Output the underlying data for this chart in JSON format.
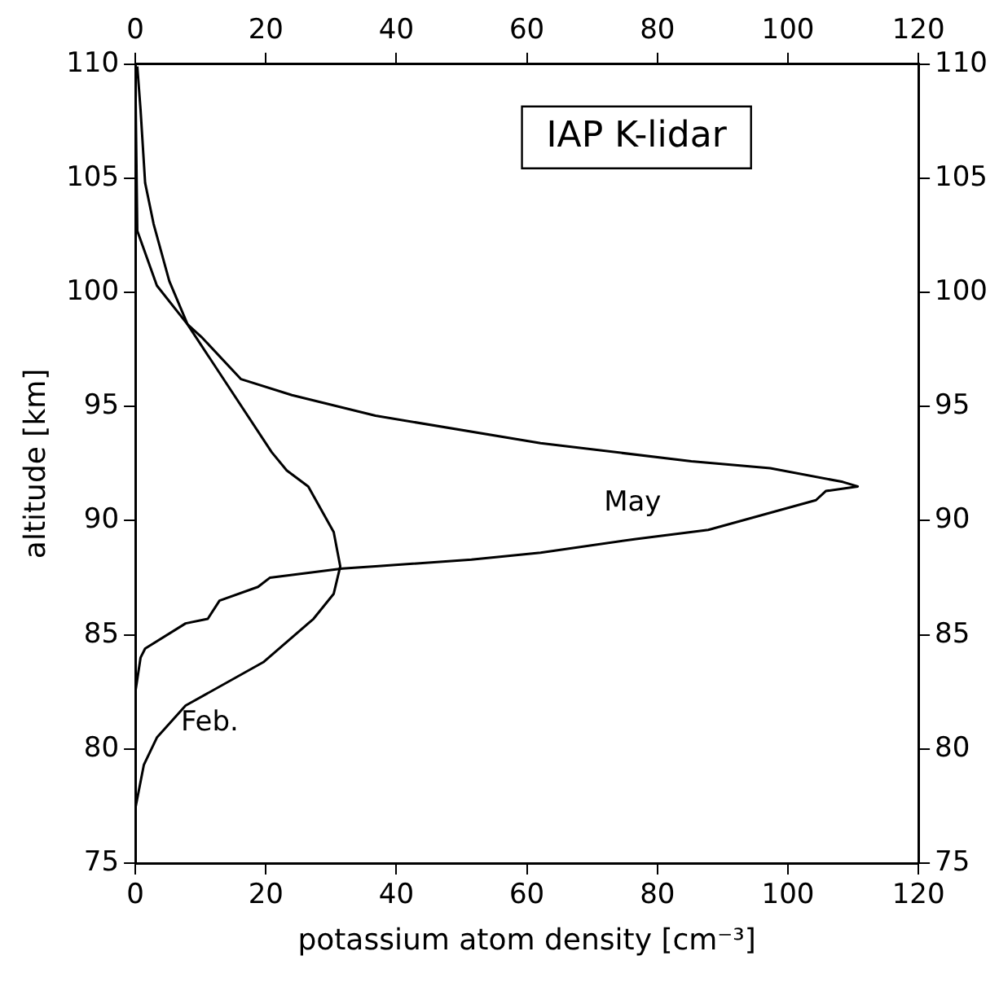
{
  "chart_data": {
    "type": "line",
    "title": "IAP K-lidar",
    "xlabel": "potassium atom density [cm⁻³]",
    "ylabel": "altitude [km]",
    "xlim": [
      0,
      120
    ],
    "xticks": [
      0,
      20,
      40,
      60,
      80,
      100,
      120
    ],
    "x2lim": [
      0,
      120
    ],
    "x2ticks": [
      0,
      20,
      40,
      60,
      80,
      100,
      120
    ],
    "ylim": [
      75,
      110
    ],
    "yticks": [
      75,
      80,
      85,
      90,
      95,
      100,
      105,
      110
    ],
    "y2lim": [
      75,
      110
    ],
    "y2ticks": [
      75,
      80,
      85,
      90,
      95,
      100,
      105,
      110
    ],
    "grid": false,
    "legend": false,
    "marker": "none",
    "line_style": "solid",
    "series": [
      {
        "color": "#000000",
        "x": [
          0.3,
          0.8,
          1.5,
          2.8,
          5.2,
          8.0,
          20.9,
          23.2,
          26.5,
          30.4,
          31.4,
          30.4,
          27.3,
          19.6,
          7.7,
          3.3,
          1.3,
          0
        ],
        "values": [
          109.9,
          108.0,
          104.8,
          103.0,
          100.5,
          98.6,
          93.0,
          92.2,
          91.5,
          89.5,
          88.0,
          86.8,
          85.7,
          83.8,
          81.9,
          80.5,
          79.3,
          77.4
        ]
      },
      {
        "color": "#000000",
        "x": [
          0,
          0.3,
          3.3,
          8.0,
          10.3,
          16.2,
          24.0,
          36.8,
          62.1,
          85.2,
          97.3,
          108.4,
          110.7,
          105.8,
          104.3,
          87.8,
          76.7,
          62.1,
          51.5,
          36.8,
          31.7,
          20.6,
          18.8,
          12.9,
          11.1,
          7.7,
          1.5,
          0.8,
          0,
          0
        ],
        "values": [
          109.5,
          102.7,
          100.3,
          98.6,
          98.0,
          96.2,
          95.5,
          94.6,
          93.4,
          92.6,
          92.3,
          91.7,
          91.5,
          91.3,
          90.9,
          89.6,
          89.2,
          88.6,
          88.3,
          88.0,
          87.9,
          87.5,
          87.1,
          86.5,
          85.7,
          85.5,
          84.4,
          84.0,
          82.5,
          80.0
        ]
      }
    ],
    "annotations": [
      "May",
      "Feb."
    ]
  }
}
